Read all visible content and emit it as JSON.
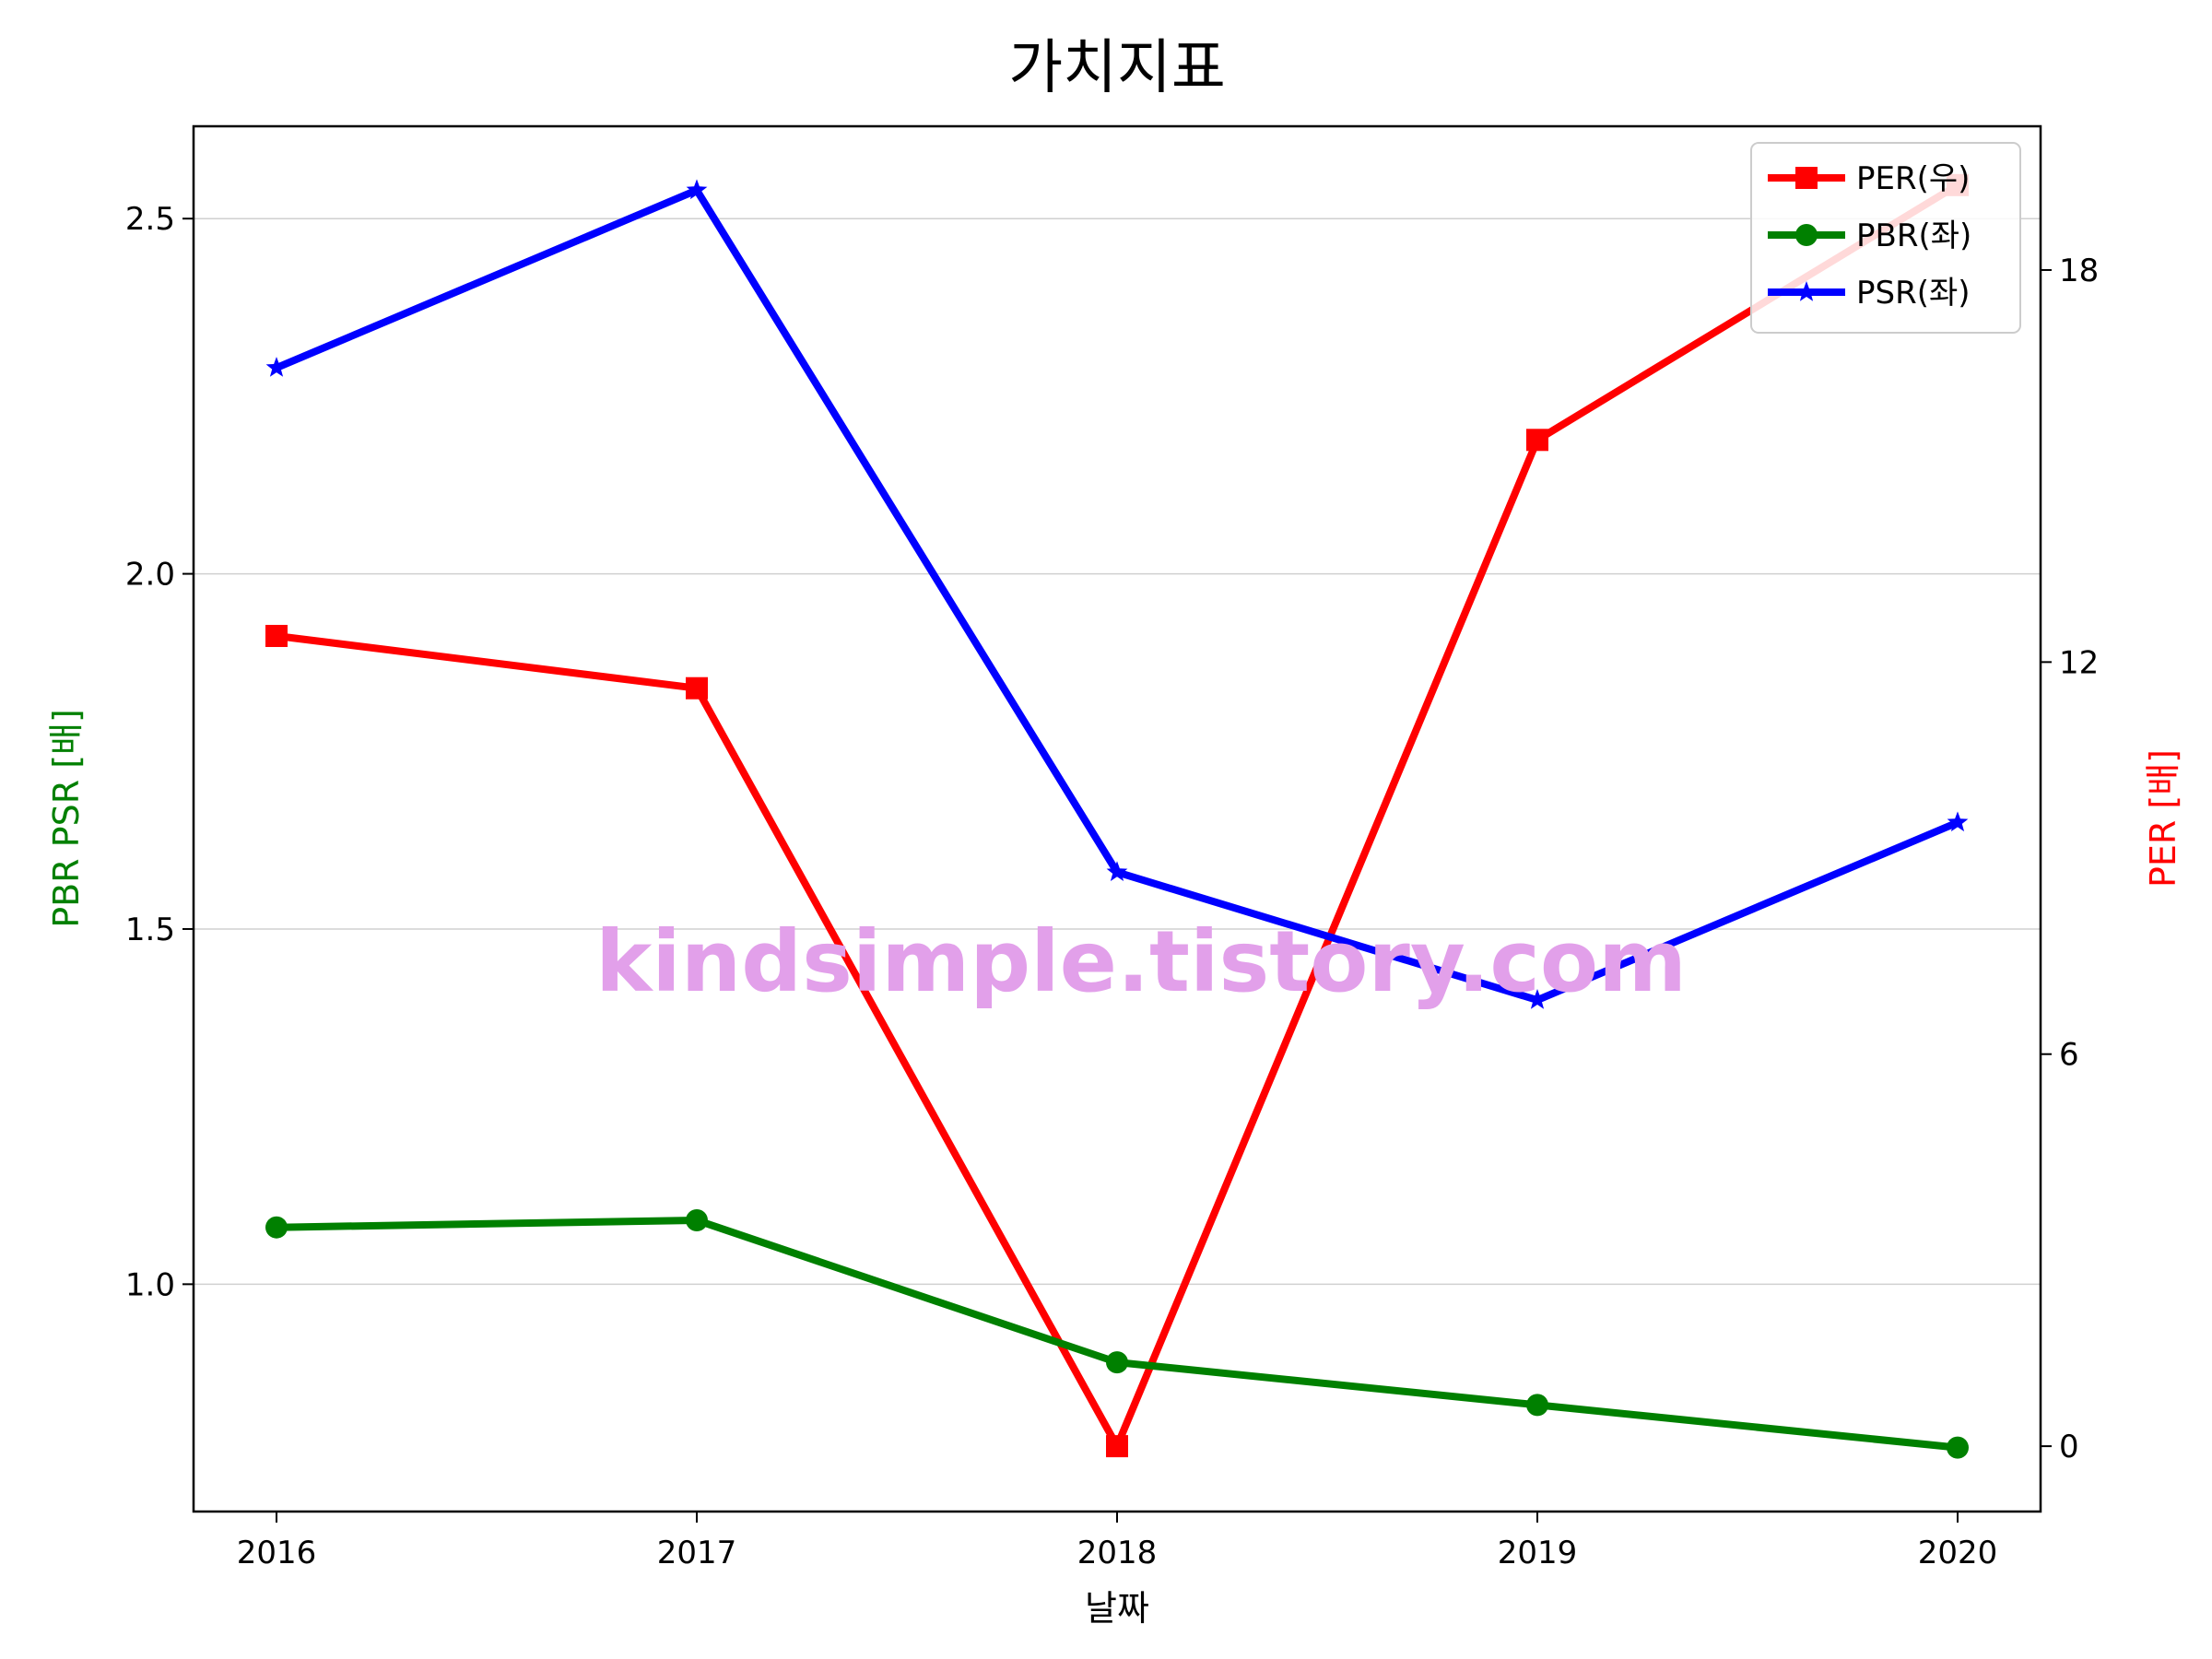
{
  "chart_data": {
    "type": "line",
    "title": "가치지표",
    "xlabel": "날짜",
    "ylabel_left": "PBR PSR [배]",
    "ylabel_right": "PER [배]",
    "categories": [
      "2016",
      "2017",
      "2018",
      "2019",
      "2020"
    ],
    "ylim_left": [
      0.68,
      2.63
    ],
    "ylim_right": [
      -1.0,
      20.2
    ],
    "yticks_left": [
      1.0,
      1.5,
      2.0,
      2.5
    ],
    "ytick_labels_left": [
      "1.0",
      "1.5",
      "2.0",
      "2.5"
    ],
    "yticks_right": [
      0,
      6,
      12,
      18
    ],
    "ytick_labels_right": [
      "0",
      "6",
      "12",
      "18"
    ],
    "grid": "horizontal, left axis",
    "legend_position": "upper-right",
    "series": [
      {
        "name": "PER(우)",
        "axis": "right",
        "color": "#ff0000",
        "marker": "square",
        "values": [
          12.4,
          11.6,
          0.0,
          15.4,
          19.3
        ]
      },
      {
        "name": "PBR(좌)",
        "axis": "left",
        "color": "#008000",
        "marker": "circle",
        "values": [
          1.08,
          1.09,
          0.89,
          0.83,
          0.77
        ]
      },
      {
        "name": "PSR(좌)",
        "axis": "left",
        "color": "#0000ff",
        "marker": "star",
        "values": [
          2.29,
          2.54,
          1.58,
          1.4,
          1.65
        ]
      }
    ],
    "watermark": "kindsimple.tistory.com"
  }
}
